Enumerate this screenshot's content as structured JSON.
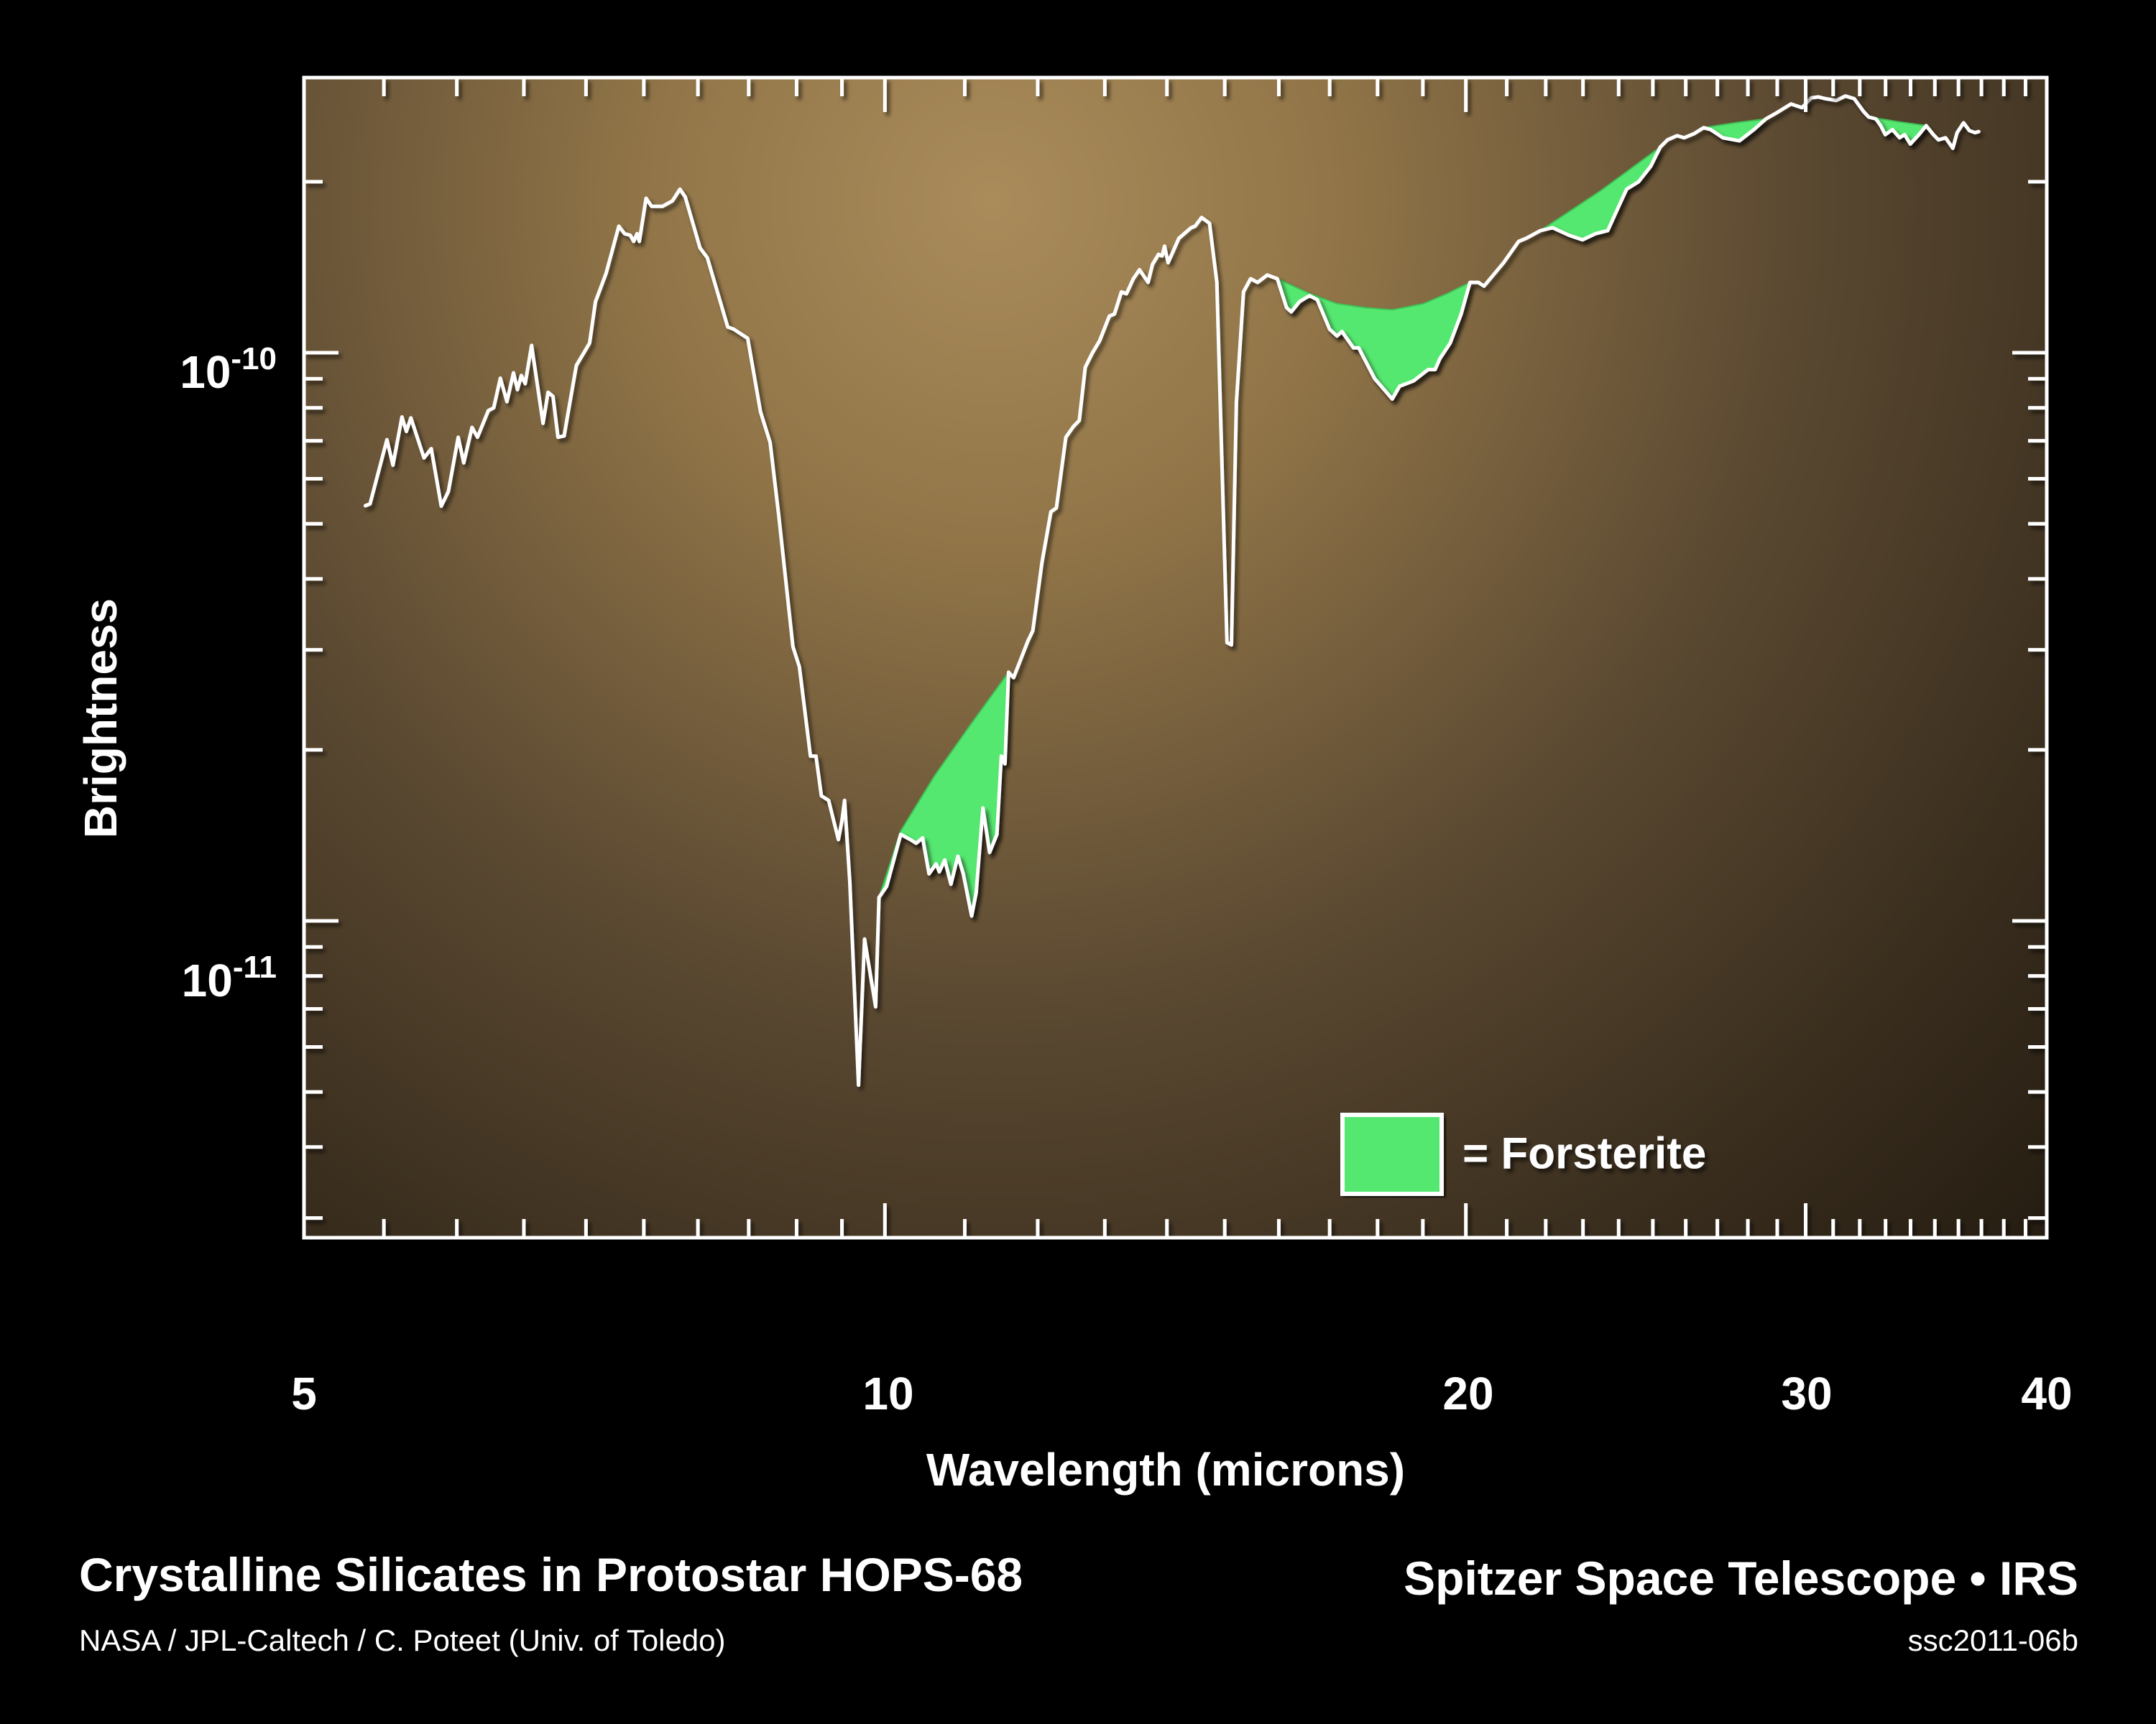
{
  "footer": {
    "title": "Crystalline Silicates in Protostar HOPS-68",
    "credit": "NASA / JPL-Caltech / C. Poteet (Univ. of Toledo)",
    "mission": "Spitzer Space Telescope • IRS",
    "image_id": "ssc2011-06b"
  },
  "axes": {
    "x_title": "Wavelength (microns)",
    "y_title": "Brightness",
    "x_tick_labels": [
      "5",
      "10",
      "20",
      "30",
      "40"
    ],
    "y_tick_labels": [
      {
        "base": "10",
        "exp": "-10"
      },
      {
        "base": "10",
        "exp": "-11"
      }
    ]
  },
  "legend": {
    "label": "= Forsterite",
    "swatch_color": "#55e86f"
  },
  "colors": {
    "background": "#000000",
    "plot_bg_center": "#a98b5a",
    "plot_bg_edge": "#241c12",
    "spectrum_line": "#ffffff",
    "forsterite_fill": "#55e86f"
  },
  "chart_data": {
    "type": "line",
    "title": "Crystalline Silicates in Protostar HOPS-68",
    "xlabel": "Wavelength (microns)",
    "ylabel": "Brightness",
    "xscale": "log",
    "yscale": "log",
    "xlim": [
      5,
      40
    ],
    "ylim": [
      2.77e-12,
      3.05e-10
    ],
    "x_major_ticks": [
      5,
      10,
      20,
      30,
      40
    ],
    "x_minor_ticks": [
      5.5,
      6,
      6.5,
      7,
      7.5,
      8,
      8.5,
      9,
      9.5,
      11,
      12,
      13,
      14,
      15,
      16,
      17,
      18,
      19,
      21,
      22,
      23,
      24,
      25,
      26,
      27,
      28,
      29,
      31,
      32,
      33,
      34,
      35,
      36,
      37,
      38,
      39
    ],
    "y_major_ticks": [
      1e-10,
      1e-11
    ],
    "y_minor_ticks": [
      2e-10,
      9e-11,
      8e-11,
      7e-11,
      6e-11,
      5e-11,
      4e-11,
      3e-11,
      2e-11,
      9e-12,
      8e-12,
      7e-12,
      6e-12,
      5e-12,
      4e-12,
      3e-12
    ],
    "grid": false,
    "legend": [
      {
        "label": "= Forsterite",
        "color": "#55e86f",
        "position": "lower-right inside plot"
      }
    ],
    "series": [
      {
        "name": "HOPS-68 IRS spectrum",
        "color": "#ffffff",
        "points": [
          [
            5.38,
            5.38e-11
          ],
          [
            5.41,
            5.42e-11
          ],
          [
            5.52,
            7.03e-11
          ],
          [
            5.56,
            6.34e-11
          ],
          [
            5.62,
            7.71e-11
          ],
          [
            5.65,
            7.27e-11
          ],
          [
            5.68,
            7.68e-11
          ],
          [
            5.77,
            6.53e-11
          ],
          [
            5.82,
            6.78e-11
          ],
          [
            5.89,
            5.37e-11
          ],
          [
            5.94,
            5.7e-11
          ],
          [
            6.01,
            7.1e-11
          ],
          [
            6.05,
            6.4e-11
          ],
          [
            6.11,
            7.39e-11
          ],
          [
            6.15,
            7.1e-11
          ],
          [
            6.23,
            7.91e-11
          ],
          [
            6.27,
            8e-11
          ],
          [
            6.32,
            9.02e-11
          ],
          [
            6.37,
            8.2e-11
          ],
          [
            6.42,
            9.22e-11
          ],
          [
            6.45,
            8.61e-11
          ],
          [
            6.48,
            9.12e-11
          ],
          [
            6.51,
            8.82e-11
          ],
          [
            6.56,
            1.03e-10
          ],
          [
            6.65,
            7.51e-11
          ],
          [
            6.69,
            8.52e-11
          ],
          [
            6.73,
            8.38e-11
          ],
          [
            6.77,
            7.1e-11
          ],
          [
            6.82,
            7.14e-11
          ],
          [
            6.85,
            7.79e-11
          ],
          [
            6.92,
            9.5e-11
          ],
          [
            7.03,
            1.04e-10
          ],
          [
            7.08,
            1.23e-10
          ],
          [
            7.17,
            1.38e-10
          ],
          [
            7.28,
            1.67e-10
          ],
          [
            7.33,
            1.62e-10
          ],
          [
            7.38,
            1.61e-10
          ],
          [
            7.41,
            1.57e-10
          ],
          [
            7.44,
            1.62e-10
          ],
          [
            7.46,
            1.57e-10
          ],
          [
            7.52,
            1.87e-10
          ],
          [
            7.57,
            1.81e-10
          ],
          [
            7.67,
            1.81e-10
          ],
          [
            7.76,
            1.85e-10
          ],
          [
            7.83,
            1.94e-10
          ],
          [
            7.88,
            1.88e-10
          ],
          [
            8.02,
            1.53e-10
          ],
          [
            8.09,
            1.47e-10
          ],
          [
            8.29,
            1.11e-10
          ],
          [
            8.35,
            1.1e-10
          ],
          [
            8.49,
            1.06e-10
          ],
          [
            8.62,
            7.87e-11
          ],
          [
            8.72,
            6.95e-11
          ],
          [
            8.81,
            5.17e-11
          ],
          [
            8.96,
            3.04e-11
          ],
          [
            9.03,
            2.8e-11
          ],
          [
            9.15,
            1.95e-11
          ],
          [
            9.21,
            1.95e-11
          ],
          [
            9.27,
            1.66e-11
          ],
          [
            9.35,
            1.63e-11
          ],
          [
            9.46,
            1.39e-11
          ],
          [
            9.5,
            1.5e-11
          ],
          [
            9.53,
            1.63e-11
          ],
          [
            9.59,
            1.17e-11
          ],
          [
            9.69,
            5.14e-12
          ],
          [
            9.76,
            9.29e-12
          ],
          [
            9.89,
            7.06e-12
          ],
          [
            9.93,
            1.1e-11
          ],
          [
            10.02,
            1.15e-11
          ],
          [
            10.19,
            1.42e-11
          ],
          [
            10.31,
            1.39e-11
          ],
          [
            10.38,
            1.37e-11
          ],
          [
            10.46,
            1.4e-11
          ],
          [
            10.54,
            1.21e-11
          ],
          [
            10.63,
            1.26e-11
          ],
          [
            10.67,
            1.22e-11
          ],
          [
            10.74,
            1.28e-11
          ],
          [
            10.82,
            1.16e-11
          ],
          [
            10.91,
            1.3e-11
          ],
          [
            10.98,
            1.21e-11
          ],
          [
            11.09,
            1.02e-11
          ],
          [
            11.15,
            1.12e-11
          ],
          [
            11.24,
            1.58e-11
          ],
          [
            11.33,
            1.32e-11
          ],
          [
            11.43,
            1.42e-11
          ],
          [
            11.49,
            1.95e-11
          ],
          [
            11.54,
            1.89e-11
          ],
          [
            11.59,
            2.74e-11
          ],
          [
            11.66,
            2.68e-11
          ],
          [
            11.86,
            3.11e-11
          ],
          [
            11.93,
            3.24e-11
          ],
          [
            12.06,
            4.27e-11
          ],
          [
            12.19,
            5.25e-11
          ],
          [
            12.27,
            5.33e-11
          ],
          [
            12.41,
            7.1e-11
          ],
          [
            12.52,
            7.41e-11
          ],
          [
            12.61,
            7.6e-11
          ],
          [
            12.7,
            9.43e-11
          ],
          [
            12.81,
            1e-10
          ],
          [
            12.92,
            1.05e-10
          ],
          [
            13.07,
            1.16e-10
          ],
          [
            13.15,
            1.17e-10
          ],
          [
            13.26,
            1.28e-10
          ],
          [
            13.34,
            1.27e-10
          ],
          [
            13.45,
            1.35e-10
          ],
          [
            13.55,
            1.4e-10
          ],
          [
            13.69,
            1.33e-10
          ],
          [
            13.76,
            1.43e-10
          ],
          [
            13.86,
            1.49e-10
          ],
          [
            13.92,
            1.48e-10
          ],
          [
            13.96,
            1.54e-10
          ],
          [
            14.02,
            1.44e-10
          ],
          [
            14.2,
            1.59e-10
          ],
          [
            14.41,
            1.66e-10
          ],
          [
            14.48,
            1.67e-10
          ],
          [
            14.59,
            1.73e-10
          ],
          [
            14.73,
            1.69e-10
          ],
          [
            14.86,
            1.33e-10
          ],
          [
            15.04,
            3.09e-11
          ],
          [
            15.12,
            3.06e-11
          ],
          [
            15.21,
            8.18e-11
          ],
          [
            15.34,
            1.28e-10
          ],
          [
            15.47,
            1.35e-10
          ],
          [
            15.6,
            1.33e-10
          ],
          [
            15.78,
            1.37e-10
          ],
          [
            15.97,
            1.35e-10
          ],
          [
            16.15,
            1.2e-10
          ],
          [
            16.24,
            1.18e-10
          ],
          [
            16.4,
            1.23e-10
          ],
          [
            16.53,
            1.25e-10
          ],
          [
            16.6,
            1.26e-10
          ],
          [
            16.75,
            1.24e-10
          ],
          [
            17.0,
            1.1e-10
          ],
          [
            17.15,
            1.07e-10
          ],
          [
            17.25,
            1.09e-10
          ],
          [
            17.49,
            1.02e-10
          ],
          [
            17.6,
            1.02e-10
          ],
          [
            17.94,
            9e-11
          ],
          [
            18.32,
            8.29e-11
          ],
          [
            18.48,
            8.73e-11
          ],
          [
            18.79,
            8.92e-11
          ],
          [
            19.12,
            9.34e-11
          ],
          [
            19.28,
            9.34e-11
          ],
          [
            19.39,
            9.76e-11
          ],
          [
            19.63,
            1.04e-10
          ],
          [
            19.89,
            1.17e-10
          ],
          [
            20.1,
            1.33e-10
          ],
          [
            20.3,
            1.33e-10
          ],
          [
            20.44,
            1.31e-10
          ],
          [
            20.92,
            1.44e-10
          ],
          [
            21.3,
            1.57e-10
          ],
          [
            21.49,
            1.59e-10
          ],
          [
            21.86,
            1.64e-10
          ],
          [
            22.18,
            1.66e-10
          ],
          [
            22.62,
            1.61e-10
          ],
          [
            22.99,
            1.58e-10
          ],
          [
            23.35,
            1.62e-10
          ],
          [
            23.69,
            1.64e-10
          ],
          [
            24.02,
            1.82e-10
          ],
          [
            24.23,
            1.94e-10
          ],
          [
            24.58,
            2e-10
          ],
          [
            24.94,
            2.13e-10
          ],
          [
            25.22,
            2.3e-10
          ],
          [
            25.44,
            2.37e-10
          ],
          [
            25.73,
            2.41e-10
          ],
          [
            25.95,
            2.39e-10
          ],
          [
            26.26,
            2.43e-10
          ],
          [
            26.56,
            2.49e-10
          ],
          [
            26.79,
            2.47e-10
          ],
          [
            27.18,
            2.39e-10
          ],
          [
            27.72,
            2.36e-10
          ],
          [
            28.2,
            2.47e-10
          ],
          [
            28.61,
            2.58e-10
          ],
          [
            29.01,
            2.65e-10
          ],
          [
            29.48,
            2.74e-10
          ],
          [
            29.87,
            2.7e-10
          ],
          [
            30.2,
            2.81e-10
          ],
          [
            30.46,
            2.82e-10
          ],
          [
            30.72,
            2.8e-10
          ],
          [
            31.11,
            2.78e-10
          ],
          [
            31.46,
            2.83e-10
          ],
          [
            31.79,
            2.8e-10
          ],
          [
            32.14,
            2.66e-10
          ],
          [
            32.34,
            2.6e-10
          ],
          [
            32.62,
            2.58e-10
          ],
          [
            32.81,
            2.51e-10
          ],
          [
            32.99,
            2.42e-10
          ],
          [
            33.27,
            2.47e-10
          ],
          [
            33.56,
            2.39e-10
          ],
          [
            33.76,
            2.42e-10
          ],
          [
            33.99,
            2.33e-10
          ],
          [
            34.34,
            2.42e-10
          ],
          [
            34.64,
            2.51e-10
          ],
          [
            34.94,
            2.42e-10
          ],
          [
            35.15,
            2.37e-10
          ],
          [
            35.45,
            2.39e-10
          ],
          [
            35.76,
            2.29e-10
          ],
          [
            35.94,
            2.44e-10
          ],
          [
            36.22,
            2.54e-10
          ],
          [
            36.47,
            2.46e-10
          ],
          [
            36.72,
            2.44e-10
          ],
          [
            36.88,
            2.45e-10
          ]
        ]
      }
    ],
    "forsterite_regions": [
      {
        "lambda_range": [
          9.93,
          11.59
        ],
        "continuum": [
          [
            9.93,
            1.1e-11
          ],
          [
            10.19,
            1.44e-11
          ],
          [
            10.61,
            1.8e-11
          ],
          [
            11.07,
            2.21e-11
          ],
          [
            11.59,
            2.74e-11
          ]
        ]
      },
      {
        "lambda_range": [
          15.97,
          20.1
        ],
        "continuum": [
          [
            15.97,
            1.35e-10
          ],
          [
            16.61,
            1.27e-10
          ],
          [
            17.15,
            1.22e-10
          ],
          [
            17.75,
            1.2e-10
          ],
          [
            18.32,
            1.19e-10
          ],
          [
            19.01,
            1.22e-10
          ],
          [
            19.55,
            1.27e-10
          ],
          [
            20.1,
            1.33e-10
          ]
        ]
      },
      {
        "lambda_range": [
          21.86,
          25.22
        ],
        "continuum": [
          [
            21.86,
            1.64e-10
          ],
          [
            23.5,
            1.93e-10
          ],
          [
            25.22,
            2.3e-10
          ]
        ]
      },
      {
        "lambda_range": [
          26.56,
          28.61
        ],
        "continuum": [
          [
            26.56,
            2.49e-10
          ],
          [
            27.6,
            2.54e-10
          ],
          [
            28.61,
            2.58e-10
          ]
        ]
      },
      {
        "lambda_range": [
          32.34,
          34.64
        ],
        "continuum": [
          [
            32.34,
            2.6e-10
          ],
          [
            33.5,
            2.55e-10
          ],
          [
            34.64,
            2.51e-10
          ]
        ]
      }
    ],
    "legend_entries": [
      {
        "label": "= Forsterite",
        "color": "#55e86f"
      }
    ]
  }
}
